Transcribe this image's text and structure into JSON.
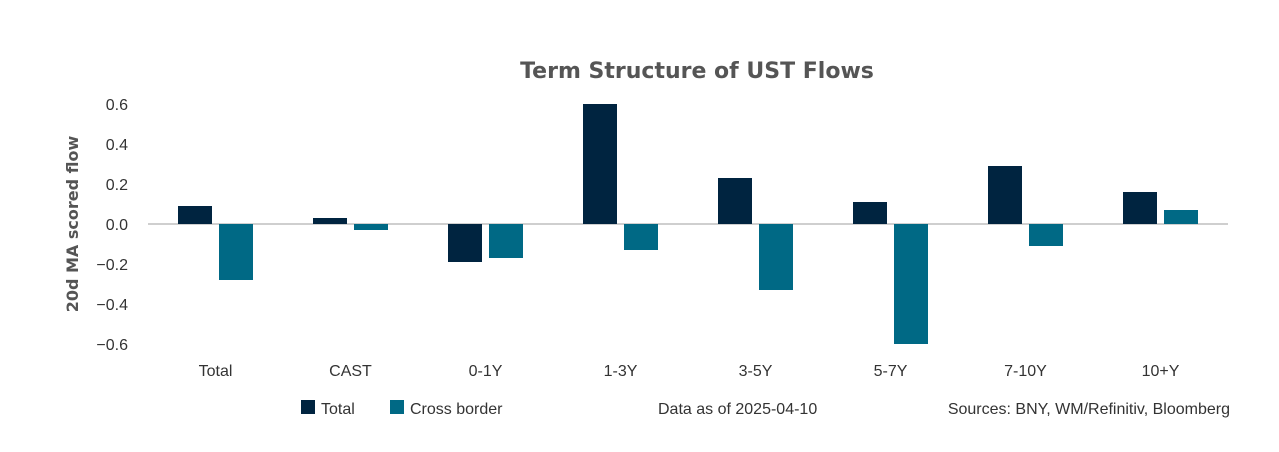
{
  "chart_data": {
    "type": "bar",
    "title": "Term Structure of UST Flows",
    "xlabel": "",
    "ylabel": "20d MA scored flow",
    "categories": [
      "Total",
      "CAST",
      "0-1Y",
      "1-3Y",
      "3-5Y",
      "5-7Y",
      "7-10Y",
      "10+Y"
    ],
    "series": [
      {
        "name": "Total",
        "color": "#002440",
        "values": [
          0.09,
          0.03,
          -0.19,
          0.6,
          0.23,
          0.11,
          0.29,
          0.16
        ]
      },
      {
        "name": "Cross border",
        "color": "#006985",
        "values": [
          -0.28,
          -0.03,
          -0.17,
          -0.13,
          -0.33,
          -0.6,
          -0.11,
          0.07
        ]
      }
    ],
    "ylim": [
      -0.65,
      0.65
    ],
    "yticks": [
      0.6,
      0.4,
      0.2,
      0.0,
      -0.2,
      -0.4,
      -0.6
    ],
    "ytick_labels": [
      "0.6",
      "0.4",
      "0.2",
      "0.0",
      "−0.2",
      "−0.4",
      "−0.6"
    ],
    "grid": false,
    "legend_position": "bottom-left"
  },
  "notes": {
    "data_as_of": "Data as of 2025-04-10",
    "sources": "Sources:  BNY, WM/Refinitiv, Bloomberg"
  }
}
